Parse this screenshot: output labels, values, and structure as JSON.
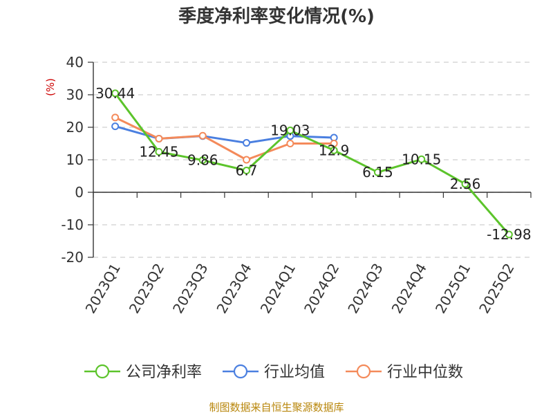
{
  "chart_data": {
    "type": "line",
    "title": "季度净利率变化情况(%)",
    "ylabel": "(%)",
    "categories": [
      "2023Q1",
      "2023Q2",
      "2023Q3",
      "2023Q4",
      "2024Q1",
      "2024Q2",
      "2024Q3",
      "2024Q4",
      "2025Q1",
      "2025Q2"
    ],
    "ylim": [
      -20,
      40
    ],
    "yticks": [
      40,
      30,
      20,
      10,
      0,
      -10,
      -20
    ],
    "grid": true,
    "legend_position": "bottom",
    "series": [
      {
        "name": "公司净利率",
        "color": "#5cc42b",
        "values": [
          30.44,
          12.45,
          9.86,
          6.7,
          19.03,
          12.9,
          6.15,
          10.15,
          2.56,
          -12.98
        ],
        "labels": [
          "30.44",
          "12.45",
          "9.86",
          "6.7",
          "19.03",
          "12.9",
          "6.15",
          "10.15",
          "2.56",
          "-12.98"
        ]
      },
      {
        "name": "行业均值",
        "color": "#4a7fe0",
        "values": [
          20.3,
          16.5,
          17.3,
          15.2,
          17.3,
          16.8,
          null,
          null,
          null,
          null
        ]
      },
      {
        "name": "行业中位数",
        "color": "#f48a5a",
        "values": [
          23.0,
          16.5,
          17.4,
          10.0,
          15.0,
          15.0,
          null,
          null,
          null,
          null
        ]
      }
    ],
    "source": "制图数据来自恒生聚源数据库"
  }
}
